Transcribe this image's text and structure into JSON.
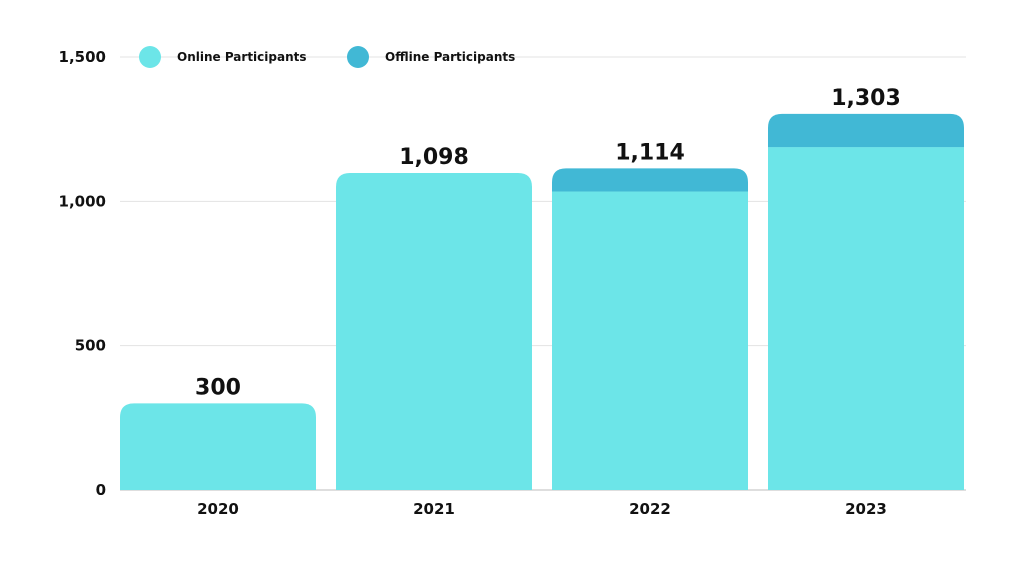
{
  "chart_data": {
    "type": "bar",
    "stacked": true,
    "title": "",
    "xlabel": "",
    "ylabel": "",
    "categories": [
      "2020",
      "2021",
      "2022",
      "2023"
    ],
    "series": [
      {
        "name": "Online Participants",
        "color": "#6ce5e8",
        "values": [
          300,
          1098,
          1034,
          1188
        ]
      },
      {
        "name": "Offline Participants",
        "color": "#41b8d5",
        "values": [
          0,
          0,
          80,
          115
        ]
      }
    ],
    "totals": [
      "300",
      "1,098",
      "1,114",
      "1,303"
    ],
    "ylim": [
      0,
      1500
    ],
    "yticks": [
      0,
      500,
      1000,
      1500
    ],
    "ytick_labels": [
      "0",
      "500",
      "1,000",
      "1,500"
    ],
    "grid": true,
    "legend_position": "top-left"
  }
}
